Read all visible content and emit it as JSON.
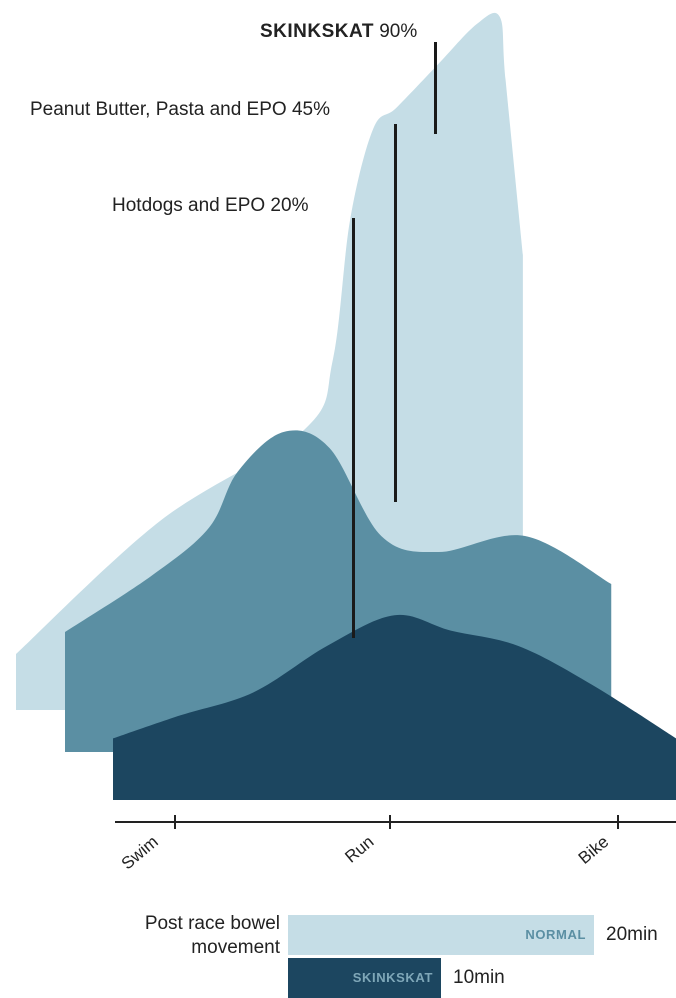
{
  "chart_data": {
    "type": "area",
    "categories": [
      "Swim",
      "Run",
      "Bike"
    ],
    "series": [
      {
        "name": "SKINKSKAT",
        "peak_percent": 90,
        "color": "#c5dde6",
        "values": [
          [
            0,
            8
          ],
          [
            25,
            27
          ],
          [
            50,
            40
          ],
          [
            55,
            50
          ],
          [
            58,
            70
          ],
          [
            62,
            83
          ],
          [
            66,
            86
          ],
          [
            73,
            92
          ],
          [
            80,
            98
          ],
          [
            84,
            99
          ],
          [
            85,
            90
          ],
          [
            88,
            65
          ]
        ]
      },
      {
        "name": "Peanut Butter, Pasta and EPO",
        "peak_percent": 45,
        "color": "#5b8fa3",
        "values": [
          [
            0,
            15
          ],
          [
            15,
            22
          ],
          [
            25,
            28
          ],
          [
            30,
            35
          ],
          [
            38,
            40
          ],
          [
            46,
            38
          ],
          [
            55,
            27
          ],
          [
            65,
            25
          ],
          [
            80,
            27
          ],
          [
            95,
            21
          ]
        ]
      },
      {
        "name": "Hotdogs and EPO",
        "peak_percent": 20,
        "color": "#1c4660",
        "values": [
          [
            0,
            8
          ],
          [
            12,
            11
          ],
          [
            25,
            14
          ],
          [
            38,
            20
          ],
          [
            50,
            24
          ],
          [
            60,
            22
          ],
          [
            72,
            20
          ],
          [
            85,
            15
          ],
          [
            100,
            8
          ]
        ]
      }
    ],
    "annotations": [
      {
        "bold": "SKINKSKAT",
        "text": " 90%"
      },
      {
        "bold": "",
        "text": "Peanut Butter, Pasta and EPO  45%"
      },
      {
        "bold": "",
        "text": "Hotdogs and EPO 20%"
      }
    ],
    "grid": false
  },
  "bowel_chart": {
    "title_line1": "Post race bowel",
    "title_line2": "movement",
    "bars": [
      {
        "label": "NORMAL",
        "value": 20,
        "value_text": "20min",
        "color": "#c5dde6",
        "label_color": "#5b8fa3"
      },
      {
        "label": "SKINKSKAT",
        "value": 10,
        "value_text": "10min",
        "color": "#1c4660",
        "label_color": "#7fa7b8"
      }
    ]
  }
}
